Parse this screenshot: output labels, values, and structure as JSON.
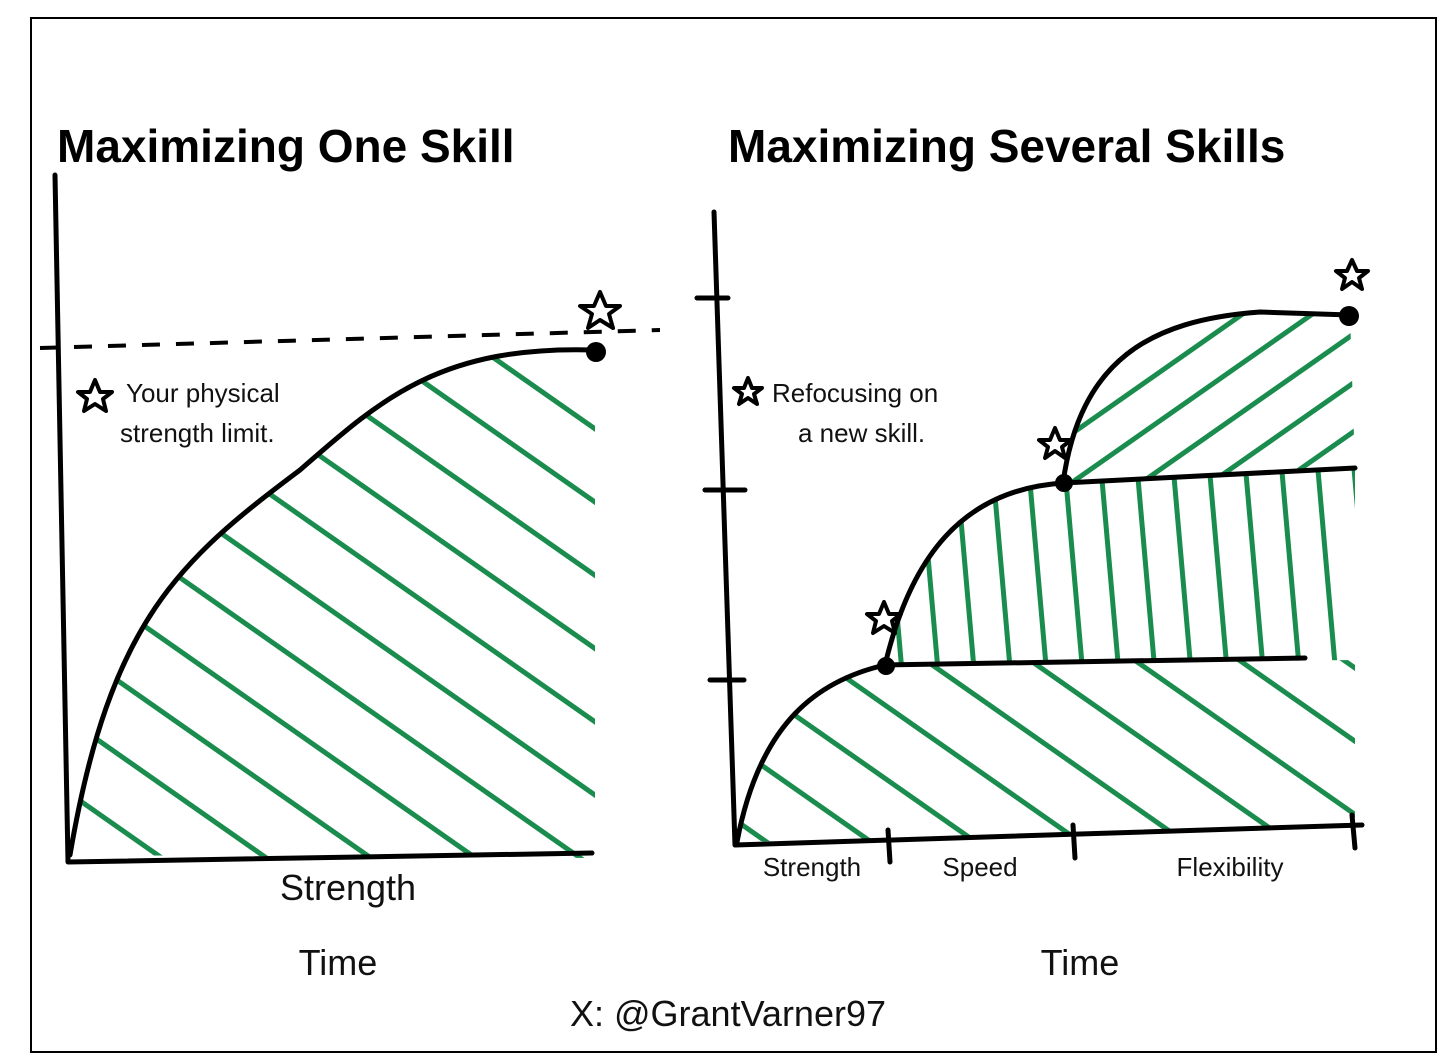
{
  "left_panel": {
    "title": "Maximizing One Skill",
    "annotation": [
      "Your physical",
      "strength limit."
    ],
    "skill_label": "Strength",
    "x_axis_label": "Time"
  },
  "right_panel": {
    "title": "Maximizing Several Skills",
    "annotation": [
      "Refocusing on",
      "a new skill."
    ],
    "skill_labels": [
      "Strength",
      "Speed",
      "Flexibility"
    ],
    "x_axis_label": "Time"
  },
  "footer": "X: @GrantVarner97"
}
